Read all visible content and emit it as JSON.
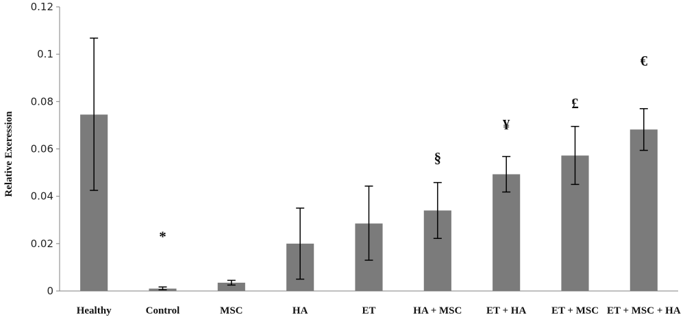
{
  "chart_data": {
    "type": "bar",
    "title": "",
    "xlabel": "",
    "ylabel": "Relative Exeression",
    "ylim": [
      0,
      0.12
    ],
    "yticks": [
      0,
      0.02,
      0.04,
      0.06,
      0.08,
      0.1,
      0.12
    ],
    "ytick_labels": [
      "0",
      "0.02",
      "0.04",
      "0.06",
      "0.08",
      "0.1",
      "0.12"
    ],
    "categories": [
      "Healthy",
      "Control",
      "MSC",
      "HA",
      "ET",
      "HA + MSC",
      "ET + HA",
      "ET + MSC",
      "ET + MSC + HA"
    ],
    "values": [
      0.0745,
      0.001,
      0.0035,
      0.02,
      0.0285,
      0.034,
      0.0493,
      0.0572,
      0.0682
    ],
    "error_low": [
      0.0425,
      0.0005,
      0.0025,
      0.005,
      0.013,
      0.0222,
      0.0418,
      0.045,
      0.0594
    ],
    "error_high": [
      0.1068,
      0.0017,
      0.0045,
      0.035,
      0.0443,
      0.0458,
      0.0568,
      0.0695,
      0.077
    ],
    "annotations": [
      "",
      "*",
      "",
      "",
      "",
      "§",
      "¥",
      "£",
      "€"
    ],
    "annotation_y": [
      null,
      0.0233,
      null,
      null,
      null,
      0.0565,
      0.0705,
      0.0795,
      0.0975
    ],
    "bar_color": "#7b7b7b",
    "grid": false,
    "legend": "none"
  }
}
